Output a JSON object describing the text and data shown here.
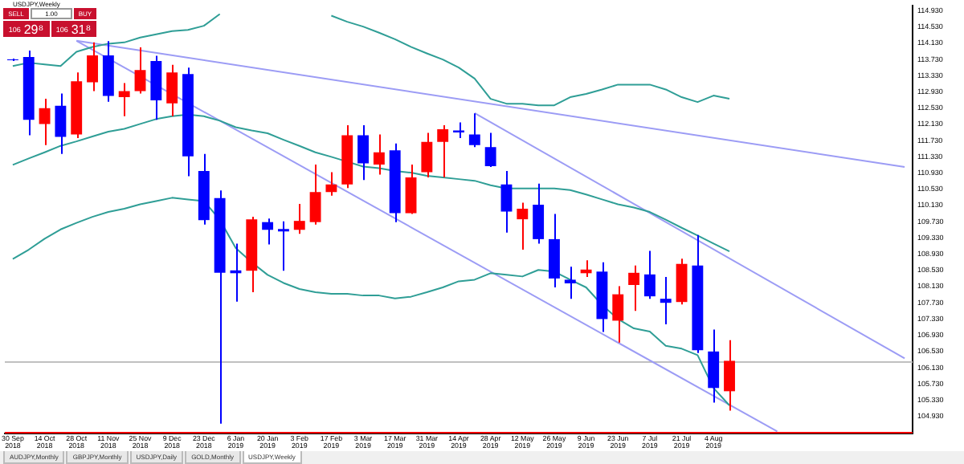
{
  "chart_data": {
    "type": "candlestick",
    "title": "USDJPY,Weekly",
    "categories": [
      "30 Sep 2018",
      null,
      "14 Oct 2018",
      null,
      "28 Oct 2018",
      null,
      "11 Nov 2018",
      null,
      "25 Nov 2018",
      null,
      "9 Dec 2018",
      null,
      "23 Dec 2018",
      null,
      "6 Jan 2019",
      null,
      "20 Jan 2019",
      null,
      "3 Feb 2019",
      null,
      "17 Feb 2019",
      null,
      "3 Mar 2019",
      null,
      "17 Mar 2019",
      null,
      "31 Mar 2019",
      null,
      "14 Apr 2019",
      null,
      "28 Apr 2019",
      null,
      "12 May 2019",
      null,
      "26 May 2019",
      null,
      "9 Jun 2019",
      null,
      "23 Jun 2019",
      null,
      "7 Jul 2019",
      null,
      "21 Jul 2019",
      null,
      "4 Aug 2019",
      null,
      null,
      null,
      null,
      null,
      null,
      null,
      null,
      null,
      null,
      null,
      null
    ],
    "ohlc": [
      [
        113.73,
        113.75,
        113.69,
        113.71
      ],
      [
        113.79,
        113.95,
        111.86,
        112.24
      ],
      [
        112.14,
        112.76,
        111.62,
        112.53
      ],
      [
        112.59,
        112.89,
        111.4,
        111.82
      ],
      [
        111.88,
        113.41,
        111.79,
        113.19
      ],
      [
        113.17,
        114.15,
        112.95,
        113.83
      ],
      [
        113.83,
        114.18,
        112.69,
        112.83
      ],
      [
        112.8,
        113.15,
        112.33,
        112.95
      ],
      [
        112.95,
        114.03,
        112.89,
        113.47
      ],
      [
        113.69,
        113.82,
        112.24,
        112.72
      ],
      [
        112.65,
        113.6,
        112.33,
        113.41
      ],
      [
        113.37,
        113.53,
        110.85,
        111.34
      ],
      [
        110.98,
        111.4,
        109.66,
        109.77
      ],
      [
        110.31,
        110.5,
        104.75,
        108.47
      ],
      [
        108.53,
        109.19,
        107.76,
        108.46
      ],
      [
        108.52,
        109.85,
        107.99,
        109.79
      ],
      [
        109.72,
        109.81,
        109.17,
        109.53
      ],
      [
        109.55,
        109.74,
        108.52,
        109.49
      ],
      [
        109.53,
        110.17,
        109.43,
        109.75
      ],
      [
        109.72,
        111.14,
        109.66,
        110.46
      ],
      [
        110.46,
        110.95,
        110.37,
        110.65
      ],
      [
        110.65,
        112.11,
        110.56,
        111.86
      ],
      [
        111.86,
        112.11,
        110.76,
        111.17
      ],
      [
        111.14,
        111.88,
        110.89,
        111.44
      ],
      [
        111.49,
        111.66,
        109.72,
        109.94
      ],
      [
        109.94,
        111.14,
        109.92,
        110.82
      ],
      [
        110.95,
        111.92,
        110.82,
        111.7
      ],
      [
        111.7,
        112.11,
        110.82,
        112.01
      ],
      [
        111.98,
        112.18,
        111.79,
        111.93
      ],
      [
        111.88,
        112.4,
        111.57,
        111.62
      ],
      [
        111.57,
        111.92,
        111.08,
        111.1
      ],
      [
        110.65,
        110.98,
        109.46,
        109.98
      ],
      [
        109.79,
        110.2,
        109.04,
        110.05
      ],
      [
        110.15,
        110.67,
        109.19,
        109.3
      ],
      [
        109.3,
        109.92,
        108.11,
        108.33
      ],
      [
        108.3,
        108.62,
        107.83,
        108.21
      ],
      [
        108.46,
        108.78,
        108.37,
        108.55
      ],
      [
        108.5,
        108.73,
        107.01,
        107.33
      ],
      [
        107.29,
        108.14,
        106.75,
        107.94
      ],
      [
        108.17,
        108.65,
        107.53,
        108.47
      ],
      [
        108.43,
        109.01,
        107.83,
        107.89
      ],
      [
        107.83,
        108.37,
        107.2,
        107.73
      ],
      [
        107.75,
        108.82,
        107.69,
        108.69
      ],
      [
        108.65,
        109.4,
        106.49,
        106.56
      ],
      [
        106.53,
        107.07,
        105.27,
        105.63
      ],
      [
        105.55,
        106.81,
        105.07,
        106.3
      ],
      null,
      null,
      null,
      null,
      null,
      null,
      null,
      null,
      null,
      null,
      null
    ],
    "colors": [
      "#0000ff",
      "#0000ff",
      "#ff0000",
      "#0000ff",
      "#ff0000",
      "#ff0000",
      "#0000ff",
      "#ff0000",
      "#ff0000",
      "#0000ff",
      "#ff0000",
      "#0000ff",
      "#0000ff",
      "#0000ff",
      "#0000ff",
      "#ff0000",
      "#0000ff",
      "#0000ff",
      "#ff0000",
      "#ff0000",
      "#ff0000",
      "#ff0000",
      "#0000ff",
      "#ff0000",
      "#0000ff",
      "#ff0000",
      "#ff0000",
      "#ff0000",
      "#0000ff",
      "#0000ff",
      "#0000ff",
      "#0000ff",
      "#ff0000",
      "#0000ff",
      "#0000ff",
      "#0000ff",
      "#ff0000",
      "#0000ff",
      "#ff0000",
      "#ff0000",
      "#0000ff",
      "#0000ff",
      "#ff0000",
      "#0000ff",
      "#0000ff",
      "#ff0000",
      null,
      null,
      null,
      null,
      null,
      null,
      null,
      null,
      null,
      null,
      null
    ],
    "series": [
      {
        "type": "line",
        "color": "#2f9e96",
        "values": [
          113.57,
          113.65,
          113.61,
          113.57,
          113.92,
          114.04,
          114.12,
          114.15,
          114.27,
          114.35,
          114.43,
          114.46,
          114.56,
          114.85,
          null,
          null,
          null,
          null,
          null,
          null,
          null,
          null,
          null,
          null,
          null,
          null,
          null,
          null,
          null,
          null,
          null,
          null,
          null,
          null,
          null,
          null,
          null,
          null,
          null,
          null,
          null,
          null,
          null,
          null,
          null,
          null,
          null,
          null,
          null,
          null,
          null,
          null,
          null,
          null,
          null,
          null,
          null
        ]
      },
      {
        "type": "line",
        "color": "#2f9e96",
        "values": [
          null,
          null,
          null,
          null,
          null,
          null,
          null,
          null,
          null,
          null,
          null,
          null,
          null,
          null,
          null,
          null,
          null,
          null,
          null,
          null,
          114.81,
          114.66,
          114.54,
          114.39,
          114.23,
          114.04,
          113.88,
          113.73,
          113.53,
          113.26,
          112.76,
          112.64,
          112.64,
          112.6,
          112.6,
          112.8,
          112.88,
          112.99,
          113.11,
          113.11,
          113.11,
          112.99,
          112.8,
          112.68,
          112.84,
          112.76,
          null,
          null,
          null,
          null,
          null,
          null,
          null,
          null,
          null,
          null,
          null
        ]
      },
      {
        "type": "line",
        "color": "#2f9e96",
        "values": [
          111.13,
          111.29,
          111.44,
          111.6,
          111.71,
          111.83,
          111.95,
          112.02,
          112.14,
          112.26,
          112.33,
          112.37,
          112.33,
          112.22,
          112.06,
          111.98,
          111.91,
          111.75,
          111.6,
          111.44,
          111.33,
          111.21,
          111.09,
          111.05,
          110.98,
          110.94,
          110.86,
          110.82,
          110.78,
          110.74,
          110.63,
          110.55,
          110.55,
          110.55,
          110.55,
          110.51,
          110.4,
          110.28,
          110.16,
          110.08,
          109.97,
          109.78,
          109.58,
          109.39,
          109.19,
          109.0,
          null,
          null,
          null,
          null,
          null,
          null,
          null,
          null,
          null,
          null,
          null
        ]
      },
      {
        "type": "line",
        "color": "#2f9e96",
        "values": [
          108.81,
          109.04,
          109.31,
          109.54,
          109.7,
          109.85,
          109.97,
          110.05,
          110.16,
          110.24,
          110.32,
          110.28,
          110.24,
          109.78,
          109.08,
          108.73,
          108.42,
          108.22,
          108.07,
          107.99,
          107.95,
          107.95,
          107.91,
          107.91,
          107.84,
          107.88,
          107.99,
          108.11,
          108.26,
          108.3,
          108.46,
          108.42,
          108.38,
          108.54,
          108.5,
          108.3,
          108.11,
          107.68,
          107.33,
          107.1,
          107.02,
          106.67,
          106.6,
          106.44,
          105.63,
          105.2,
          null,
          null,
          null,
          null,
          null,
          null,
          null,
          null,
          null,
          null,
          null
        ]
      },
      {
        "type": "line",
        "color": "#9c9cf5",
        "values": [
          null,
          null,
          null,
          null,
          114.19,
          null,
          null,
          null,
          null,
          null,
          null,
          null,
          null,
          null,
          null,
          null,
          null,
          null,
          null,
          null,
          null,
          null,
          null,
          null,
          null,
          null,
          null,
          null,
          null,
          null,
          null,
          null,
          null,
          null,
          null,
          null,
          null,
          null,
          null,
          null,
          null,
          null,
          null,
          null,
          null,
          null,
          null,
          null,
          null,
          null,
          null,
          null,
          null,
          null,
          null,
          null,
          111.08
        ]
      },
      {
        "type": "line",
        "color": "#9c9cf5",
        "values": [
          null,
          null,
          null,
          null,
          114.19,
          null,
          null,
          null,
          null,
          null,
          null,
          null,
          null,
          null,
          null,
          null,
          null,
          null,
          null,
          null,
          null,
          null,
          null,
          null,
          null,
          null,
          null,
          null,
          null,
          null,
          null,
          null,
          null,
          null,
          null,
          null,
          null,
          null,
          null,
          null,
          null,
          null,
          null,
          null,
          null,
          null,
          null,
          null,
          104.56,
          null,
          null,
          null,
          null,
          null,
          null,
          null,
          null
        ]
      },
      {
        "type": "line",
        "color": "#9c9cf5",
        "values": [
          null,
          null,
          null,
          null,
          null,
          null,
          null,
          null,
          null,
          null,
          null,
          null,
          null,
          null,
          null,
          null,
          null,
          null,
          null,
          null,
          null,
          null,
          null,
          null,
          null,
          null,
          null,
          null,
          null,
          112.41,
          null,
          null,
          null,
          null,
          null,
          null,
          null,
          null,
          null,
          null,
          null,
          null,
          null,
          null,
          null,
          null,
          null,
          null,
          null,
          null,
          null,
          null,
          null,
          null,
          null,
          null,
          106.36
        ]
      }
    ],
    "ylim": [
      104.5,
      115.05
    ],
    "yticks": [
      {
        "value": 104.93,
        "label": "104.930"
      },
      {
        "value": 105.33,
        "label": "105.330"
      },
      {
        "value": 105.73,
        "label": "105.730"
      },
      {
        "value": 106.13,
        "label": "106.130"
      },
      {
        "value": 106.53,
        "label": "106.530"
      },
      {
        "value": 106.93,
        "label": "106.930"
      },
      {
        "value": 107.33,
        "label": "107.330"
      },
      {
        "value": 107.73,
        "label": "107.730"
      },
      {
        "value": 108.13,
        "label": "108.130"
      },
      {
        "value": 108.53,
        "label": "108.530"
      },
      {
        "value": 108.93,
        "label": "108.930"
      },
      {
        "value": 109.33,
        "label": "109.330"
      },
      {
        "value": 109.73,
        "label": "109.730"
      },
      {
        "value": 110.13,
        "label": "110.130"
      },
      {
        "value": 110.53,
        "label": "110.530"
      },
      {
        "value": 110.93,
        "label": "110.930"
      },
      {
        "value": 111.33,
        "label": "111.330"
      },
      {
        "value": 111.73,
        "label": "111.730"
      },
      {
        "value": 112.13,
        "label": "112.130"
      },
      {
        "value": 112.53,
        "label": "112.530"
      },
      {
        "value": 112.93,
        "label": "112.930"
      },
      {
        "value": 113.33,
        "label": "113.330"
      },
      {
        "value": 113.73,
        "label": "113.730"
      },
      {
        "value": 114.13,
        "label": "114.130"
      },
      {
        "value": 114.53,
        "label": "114.530"
      },
      {
        "value": 114.93,
        "label": "114.930"
      }
    ],
    "ref_lines": [
      {
        "axis": "y",
        "value": 106.3,
        "color": "#c0c0c0"
      },
      {
        "axis": "y",
        "value": 104.56,
        "color": "#ff0000"
      }
    ],
    "annotations": [
      "SELL",
      "1.00",
      "BUY",
      "106",
      "29⁸",
      "106",
      "31⁸",
      "AUDJPY,Monthly",
      "GBPJPY,Monthly",
      "USDJPY,Daily",
      "GOLD,Monthly",
      "USDJPY,Weekly"
    ]
  }
}
